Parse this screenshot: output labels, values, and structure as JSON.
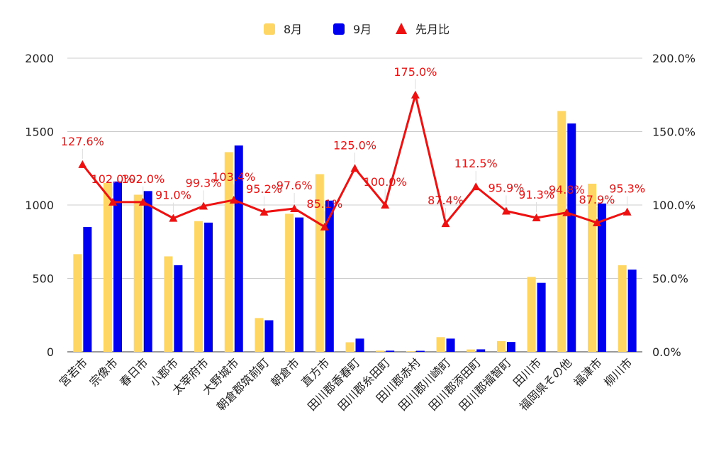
{
  "chart_data": {
    "type": "bar",
    "categories": [
      "宮若市",
      "宗像市",
      "春日市",
      "小郡市",
      "太宰府市",
      "大野城市",
      "朝倉郡筑前町",
      "朝倉市",
      "直方市",
      "田川郡香春町",
      "田川郡糸田町",
      "田川郡赤村",
      "田川郡川崎町",
      "田川郡添田町",
      "田川郡福智町",
      "田川市",
      "福岡県その他",
      "福津市",
      "柳川市"
    ],
    "series": [
      {
        "name": "8月",
        "type": "bar",
        "axis": "left",
        "color": "#fdd663",
        "values": [
          665,
          1150,
          1070,
          650,
          890,
          1360,
          230,
          940,
          1210,
          65,
          8,
          4,
          100,
          16,
          73,
          510,
          1640,
          1145,
          590
        ]
      },
      {
        "name": "9月",
        "type": "bar",
        "axis": "left",
        "color": "#0000ee",
        "values": [
          850,
          1160,
          1095,
          590,
          880,
          1405,
          215,
          915,
          1030,
          90,
          8,
          7,
          90,
          17,
          67,
          470,
          1555,
          1010,
          560
        ]
      },
      {
        "name": "先月比",
        "type": "line",
        "axis": "right",
        "color": "#ee1111",
        "values": [
          127.6,
          102.0,
          102.0,
          91.0,
          99.3,
          103.4,
          95.2,
          97.6,
          85.1,
          125.0,
          100.0,
          175.0,
          87.4,
          112.5,
          95.9,
          91.3,
          94.8,
          87.9,
          95.3
        ],
        "labels": [
          "127.6%",
          "102.0%",
          "102.0%",
          "91.0%",
          "99.3%",
          "103.4%",
          "95.2%",
          "97.6%",
          "85.1%",
          "125.0%",
          "100.0%",
          "175.0%",
          "87.4%",
          "112.5%",
          "95.9%",
          "91.3%",
          "94.8%",
          "87.9%",
          "95.3%"
        ]
      }
    ],
    "ylim_left": [
      0,
      2000
    ],
    "yticks_left": [
      "0",
      "500",
      "1000",
      "1500",
      "2000"
    ],
    "ylim_right": [
      0,
      200
    ],
    "yticks_right": [
      "0.0%",
      "50.0%",
      "100.0%",
      "150.0%",
      "200.0%"
    ],
    "grid": true,
    "legend_position": "top-center"
  }
}
